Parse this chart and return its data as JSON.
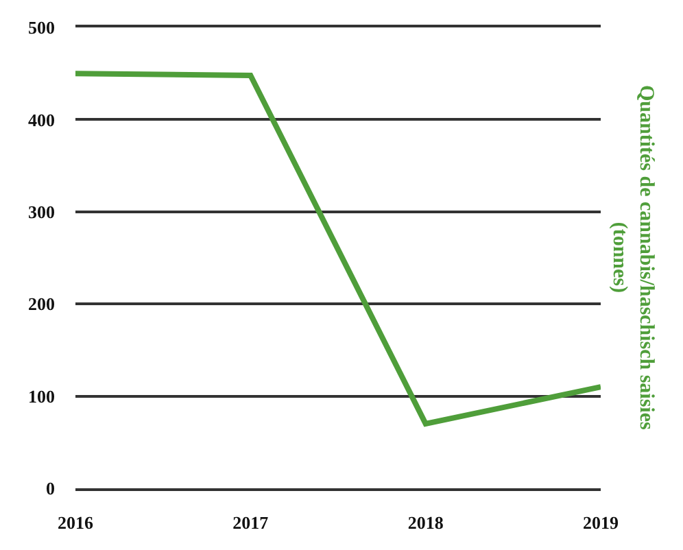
{
  "chart_data": {
    "type": "line",
    "ylabel": "Quantités de cannabis/haschisch saisies\n(tonnes)",
    "x": [
      2016,
      2017,
      2018,
      2019
    ],
    "series": [
      {
        "color": "#4f9e3a",
        "values": [
          450,
          448,
          70,
          110
        ]
      }
    ],
    "xlim": [
      2016,
      2019
    ],
    "xticks": [
      2016,
      2017,
      2018,
      2019
    ],
    "ylim": [
      0,
      500
    ],
    "yticks": [
      0,
      100,
      200,
      300,
      400,
      500
    ],
    "grid": "y",
    "marker": "none",
    "line_style": "solid"
  }
}
